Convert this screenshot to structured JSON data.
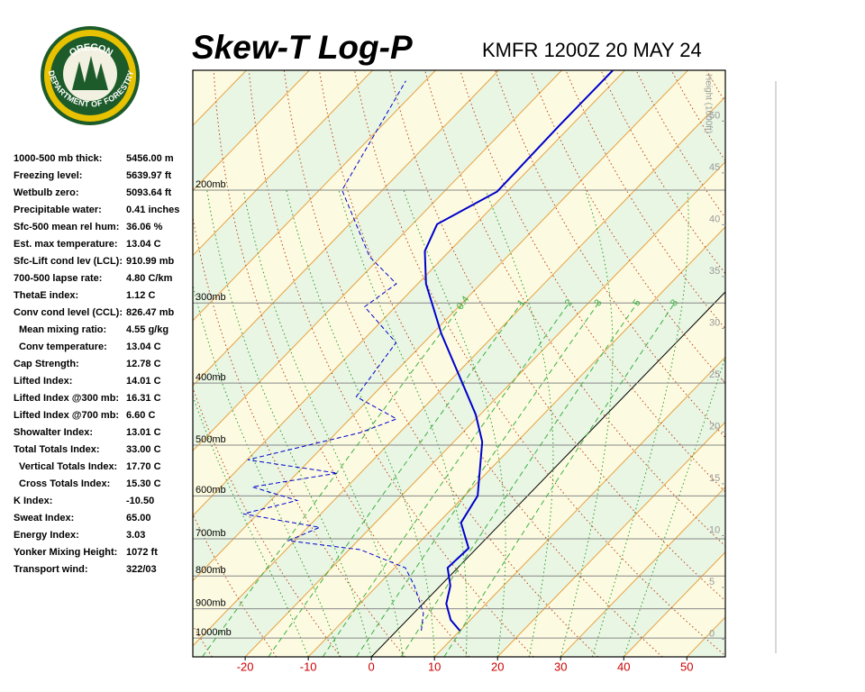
{
  "logo": {
    "top": "OREGON",
    "bottom": "DEPARTMENT OF FORESTRY"
  },
  "indices": [
    {
      "label": "1000-500 mb thick:",
      "value": "5456.00 m"
    },
    {
      "label": "Freezing level:",
      "value": "5639.97 ft"
    },
    {
      "label": "Wetbulb zero:",
      "value": "5093.64 ft"
    },
    {
      "label": "Precipitable water:",
      "value": "0.41 inches"
    },
    {
      "label": "Sfc-500 mean rel hum:",
      "value": "36.06 %"
    },
    {
      "label": "Est. max temperature:",
      "value": "13.04 C"
    },
    {
      "label": "Sfc-Lift cond lev (LCL):",
      "value": "910.99 mb"
    },
    {
      "label": "700-500 lapse rate:",
      "value": "4.80 C/km"
    },
    {
      "label": "ThetaE index:",
      "value": "1.12 C"
    },
    {
      "label": "Conv cond level (CCL):",
      "value": "826.47 mb"
    },
    {
      "label": "Mean mixing ratio:",
      "value": "4.55 g/kg"
    },
    {
      "label": "Conv temperature:",
      "value": "13.04 C"
    },
    {
      "label": "Cap Strength:",
      "value": "12.78 C"
    },
    {
      "label": "Lifted Index:",
      "value": "14.01 C"
    },
    {
      "label": "Lifted Index @300 mb:",
      "value": "16.31 C"
    },
    {
      "label": "Lifted Index @700 mb:",
      "value": "6.60 C"
    },
    {
      "label": "Showalter Index:",
      "value": "13.01 C"
    },
    {
      "label": "Total Totals Index:",
      "value": "33.00 C"
    },
    {
      "label": "Vertical Totals Index:",
      "value": "17.70 C"
    },
    {
      "label": "Cross Totals Index:",
      "value": "15.30 C"
    },
    {
      "label": "K Index:",
      "value": "-10.50"
    },
    {
      "label": "Sweat Index:",
      "value": "65.00"
    },
    {
      "label": "Energy Index:",
      "value": "3.03"
    },
    {
      "label": "Yonker Mixing Height:",
      "value": "1072 ft"
    },
    {
      "label": "Transport wind:",
      "value": "322/03"
    }
  ],
  "chart_data": {
    "type": "skew-t",
    "title": "Skew-T Log-P",
    "subtitle": "KMFR 1200Z 20 MAY 24",
    "xlim": [
      -28.3,
      56.1
    ],
    "xticks": [
      -20,
      -10,
      0,
      10,
      20,
      30,
      40,
      50
    ],
    "ylim": [
      1070,
      130
    ],
    "log_y": true,
    "yticks": [
      {
        "value": 200,
        "label": "200mb"
      },
      {
        "value": 300,
        "label": "300mb"
      },
      {
        "value": 400,
        "label": "400mb"
      },
      {
        "value": 500,
        "label": "500mb"
      },
      {
        "value": 600,
        "label": "600mb"
      },
      {
        "value": 700,
        "label": "700mb"
      },
      {
        "value": 800,
        "label": "800mb"
      },
      {
        "value": 900,
        "label": "900mb"
      },
      {
        "value": 1000,
        "label": "1000mb"
      }
    ],
    "y2lim": [
      -1.7,
      54.9
    ],
    "y2ticks": [
      0,
      5,
      10,
      15,
      20,
      25,
      30,
      35,
      40,
      45,
      50
    ],
    "y2label": "Height (1000ft)",
    "mixing_ratios": [
      0.4,
      1,
      2,
      3,
      5,
      8
    ],
    "series": [
      {
        "color": "#0000cc",
        "style": "solid",
        "pressure": [
          974,
          937,
          884,
          829,
          777,
          724,
          661,
          600,
          494,
          448,
          335,
          280,
          249,
          226,
          201,
          159,
          130
        ],
        "values": [
          10.0,
          6.9,
          3.7,
          1.6,
          -1.6,
          -1.3,
          -6.4,
          -7.9,
          -15.5,
          -20.7,
          -38.6,
          -48.7,
          -53.9,
          -56.1,
          -51.6,
          -51.9,
          -51.9
        ]
      },
      {
        "color": "#0000cc",
        "style": "dashed",
        "pressure": [
          974,
          914,
          829,
          777,
          728,
          705,
          672,
          640,
          610,
          581,
          553,
          527,
          478,
          455,
          420,
          346,
          304,
          280,
          254,
          200,
          135
        ],
        "values": [
          3.9,
          1.5,
          -4.1,
          -8.3,
          -18.2,
          -31,
          -28.1,
          -42.3,
          -35.8,
          -45,
          -33.6,
          -49.9,
          -36.2,
          -32.6,
          -42.4,
          -44.4,
          -54.9,
          -53.4,
          -61.8,
          -76.4,
          -83.1
        ]
      }
    ]
  }
}
